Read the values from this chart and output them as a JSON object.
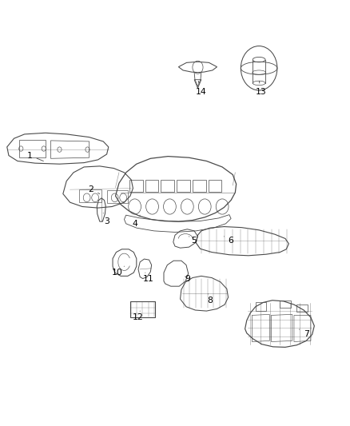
{
  "background_color": "#ffffff",
  "line_color": "#4a4a4a",
  "label_color": "#000000",
  "figsize": [
    4.38,
    5.33
  ],
  "dpi": 100,
  "label_positions": {
    "1": [
      0.085,
      0.635,
      0.13,
      0.62
    ],
    "2": [
      0.26,
      0.555,
      0.285,
      0.545
    ],
    "3": [
      0.305,
      0.48,
      0.295,
      0.5
    ],
    "4": [
      0.385,
      0.475,
      0.4,
      0.495
    ],
    "5": [
      0.555,
      0.435,
      0.54,
      0.445
    ],
    "6": [
      0.66,
      0.435,
      0.64,
      0.445
    ],
    "7": [
      0.875,
      0.215,
      0.85,
      0.23
    ],
    "8": [
      0.6,
      0.295,
      0.595,
      0.31
    ],
    "9": [
      0.535,
      0.345,
      0.525,
      0.355
    ],
    "10": [
      0.335,
      0.36,
      0.355,
      0.375
    ],
    "11": [
      0.425,
      0.345,
      0.415,
      0.36
    ],
    "12": [
      0.395,
      0.255,
      0.4,
      0.27
    ],
    "13": [
      0.745,
      0.785,
      0.74,
      0.815
    ],
    "14": [
      0.575,
      0.785,
      0.565,
      0.815
    ]
  }
}
